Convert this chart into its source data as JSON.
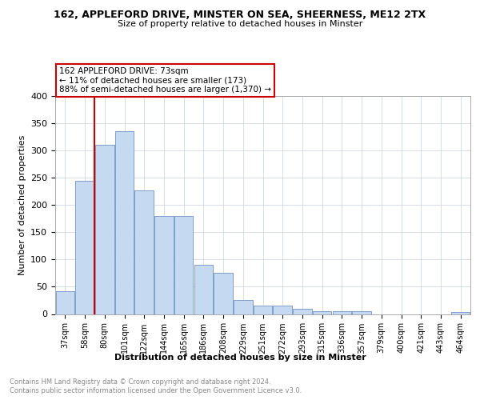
{
  "title_main": "162, APPLEFORD DRIVE, MINSTER ON SEA, SHEERNESS, ME12 2TX",
  "title_sub": "Size of property relative to detached houses in Minster",
  "xlabel": "Distribution of detached houses by size in Minster",
  "ylabel": "Number of detached properties",
  "footer1": "Contains HM Land Registry data © Crown copyright and database right 2024.",
  "footer2": "Contains public sector information licensed under the Open Government Licence v3.0.",
  "annotation_line1": "162 APPLEFORD DRIVE: 73sqm",
  "annotation_line2": "← 11% of detached houses are smaller (173)",
  "annotation_line3": "88% of semi-detached houses are larger (1,370) →",
  "bar_categories": [
    "37sqm",
    "58sqm",
    "80sqm",
    "101sqm",
    "122sqm",
    "144sqm",
    "165sqm",
    "186sqm",
    "208sqm",
    "229sqm",
    "251sqm",
    "272sqm",
    "293sqm",
    "315sqm",
    "336sqm",
    "357sqm",
    "379sqm",
    "400sqm",
    "421sqm",
    "443sqm",
    "464sqm"
  ],
  "bar_values": [
    42,
    245,
    310,
    335,
    227,
    180,
    180,
    90,
    75,
    25,
    16,
    15,
    10,
    5,
    5,
    5,
    0,
    0,
    0,
    0,
    3
  ],
  "bar_color": "#c5d9f1",
  "bar_edge_color": "#7094c1",
  "vline_color": "#cc0000",
  "annotation_box_color": "#cc0000",
  "ylim": [
    0,
    400
  ],
  "yticks": [
    0,
    50,
    100,
    150,
    200,
    250,
    300,
    350,
    400
  ],
  "bg_color": "#ffffff",
  "grid_color": "#d0d8e4"
}
